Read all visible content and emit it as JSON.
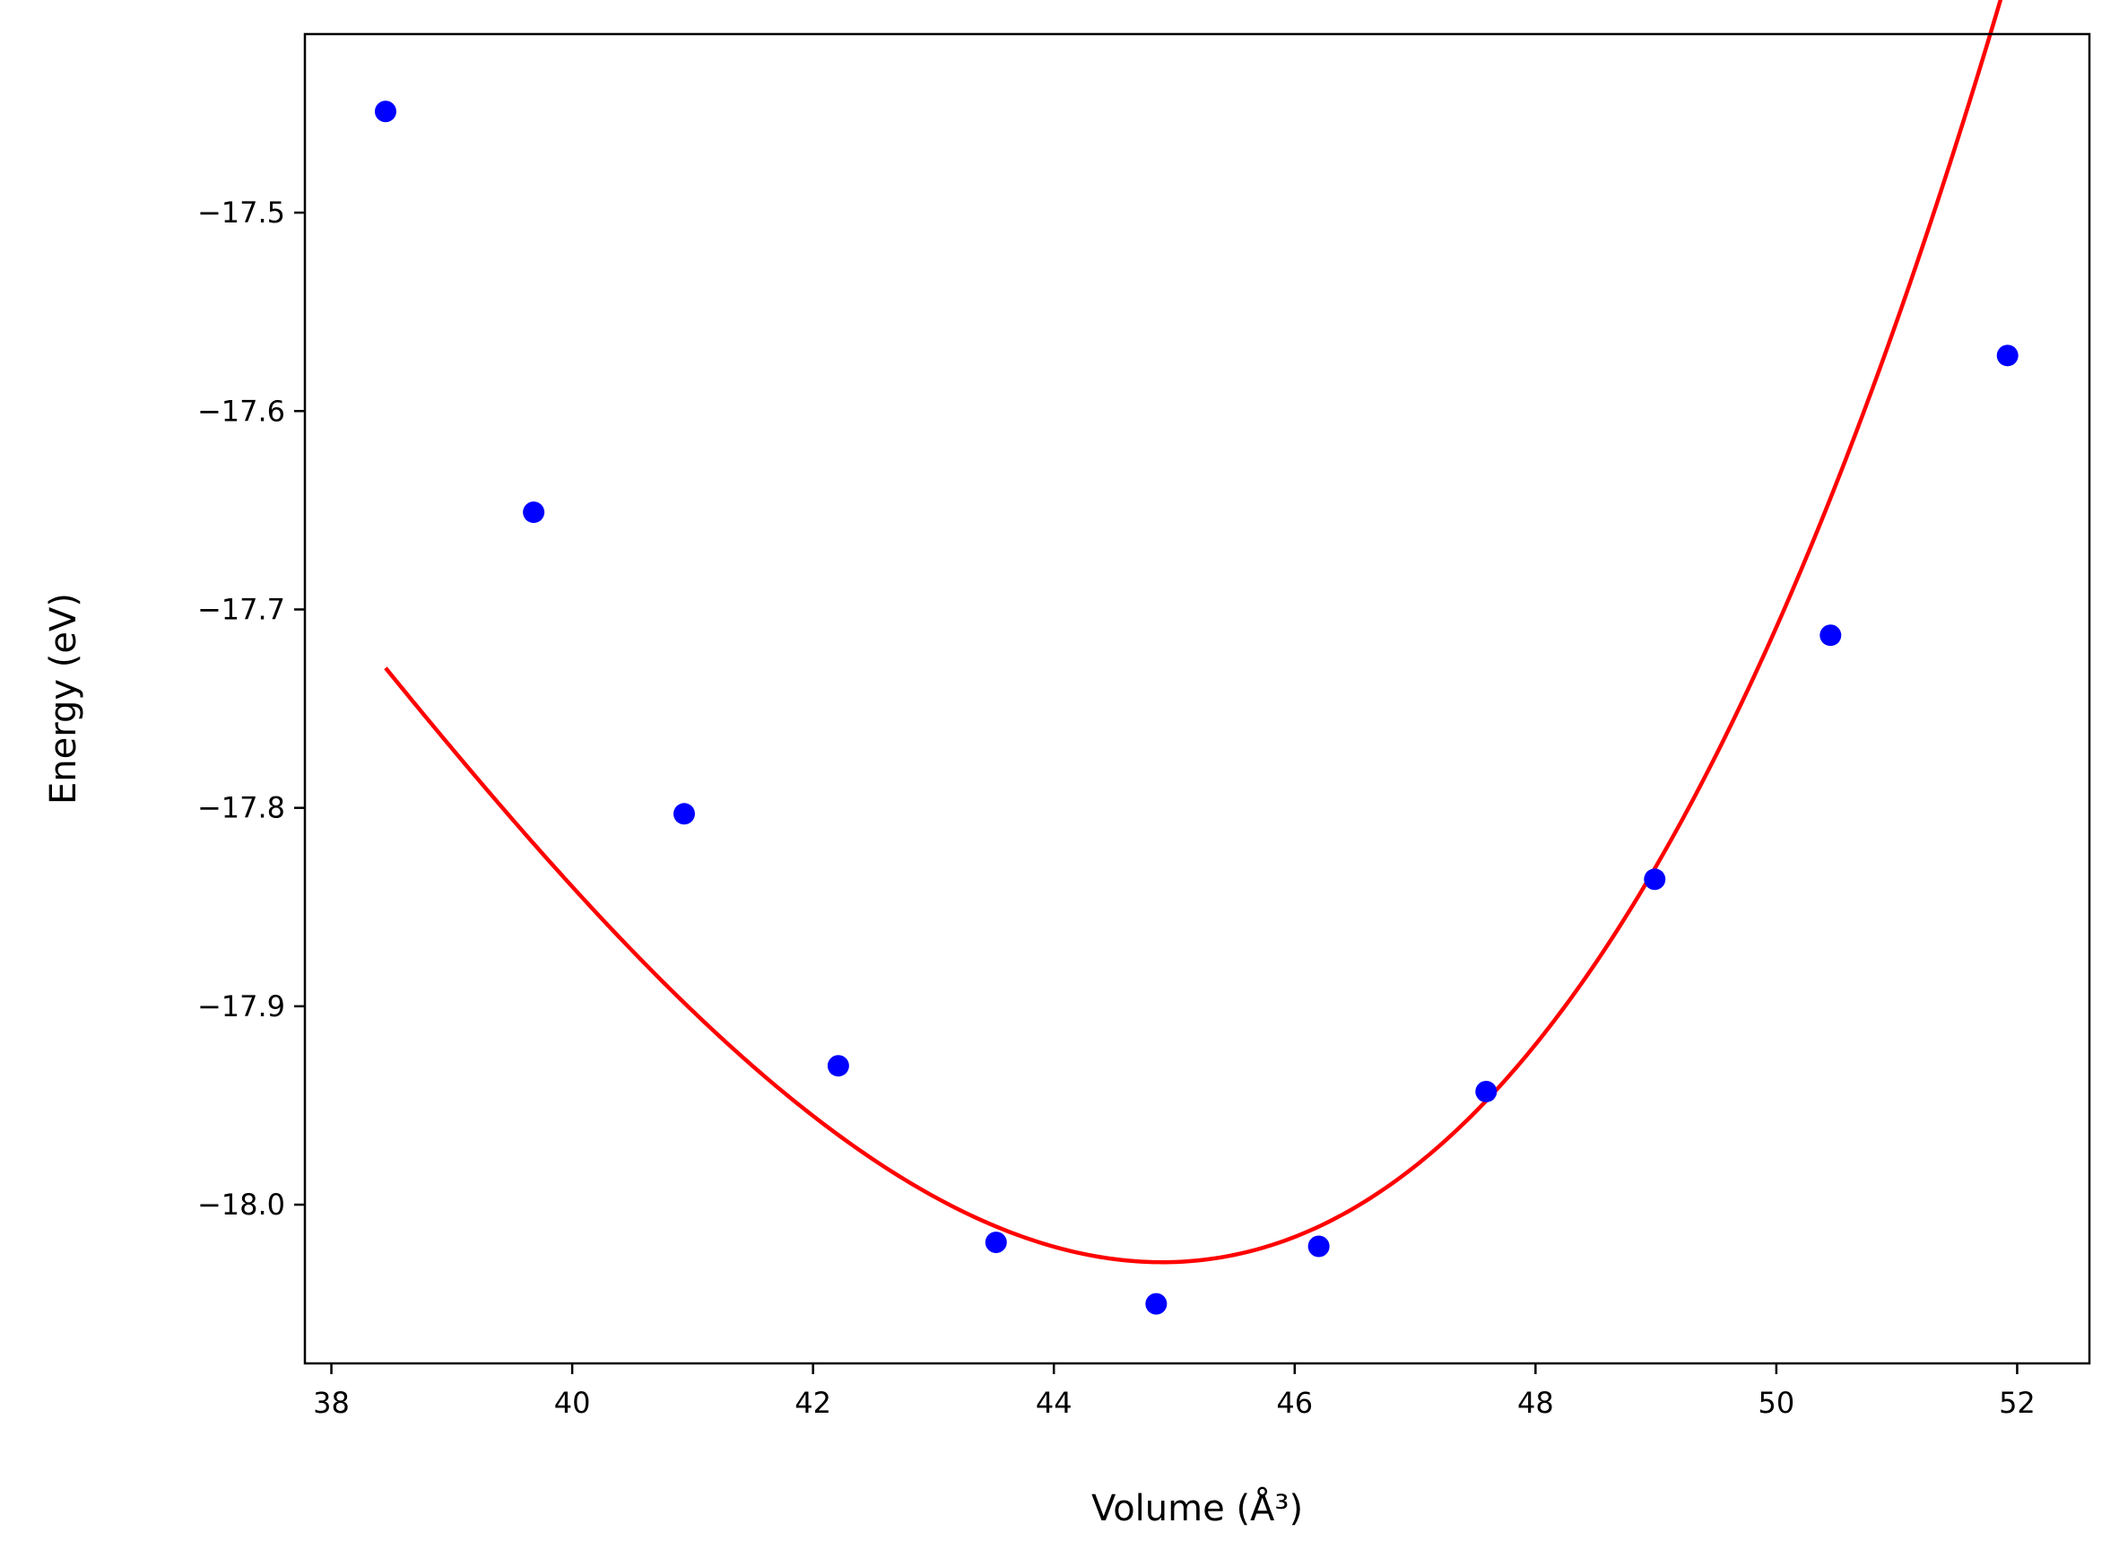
{
  "chart_data": {
    "type": "scatter",
    "xlabel": "Volume (Å³)",
    "ylabel": "Energy (eV)",
    "xlim": [
      37.78,
      52.6
    ],
    "ylim": [
      -18.08,
      -17.41
    ],
    "xticks": [
      38,
      40,
      42,
      44,
      46,
      48,
      50,
      52
    ],
    "xtick_labels": [
      "38",
      "40",
      "42",
      "44",
      "46",
      "48",
      "50",
      "52"
    ],
    "yticks": [
      -18.0,
      -17.9,
      -17.8,
      -17.7,
      -17.6,
      -17.5
    ],
    "ytick_labels": [
      "−18.0",
      "−17.9",
      "−17.8",
      "−17.7",
      "−17.6",
      "−17.5"
    ],
    "grid": false,
    "series": [
      {
        "kind": "points",
        "color": "#0000ff",
        "x": [
          38.45,
          39.68,
          40.93,
          42.21,
          43.52,
          44.85,
          46.2,
          47.59,
          48.99,
          50.45,
          51.92
        ],
        "y": [
          -17.449,
          -17.651,
          -17.803,
          -17.93,
          -18.019,
          -18.05,
          -18.021,
          -17.943,
          -17.836,
          -17.713,
          -17.572
        ]
      },
      {
        "kind": "fit-curve",
        "color": "#ff0000",
        "x_range": [
          38.45,
          51.92
        ],
        "minimum": [
          44.9,
          -18.029
        ],
        "a2": 0.01005,
        "a3": 0.000442
      }
    ]
  }
}
